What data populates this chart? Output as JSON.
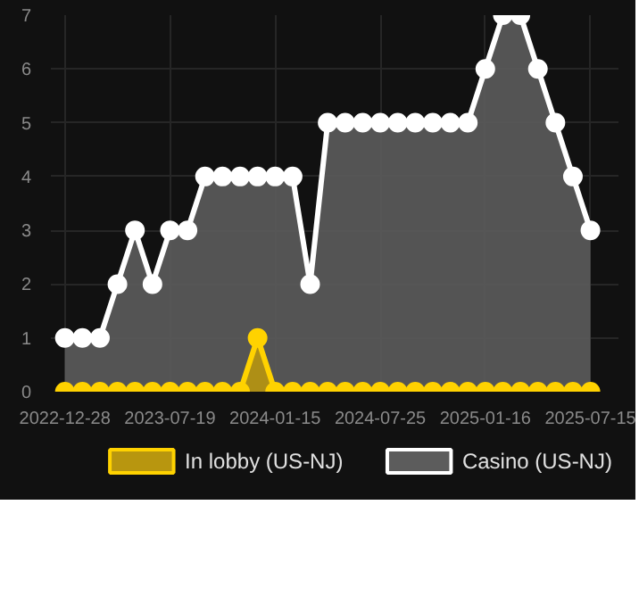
{
  "chart_data": {
    "type": "area",
    "categories": [
      "2022-12-28",
      null,
      null,
      null,
      null,
      null,
      "2023-07-19",
      null,
      null,
      null,
      null,
      null,
      "2024-01-15",
      null,
      null,
      null,
      null,
      null,
      "2024-07-25",
      null,
      null,
      null,
      null,
      null,
      "2025-01-16",
      null,
      null,
      null,
      null,
      null,
      "2025-07-15"
    ],
    "series": [
      {
        "name": "In lobby (US-NJ)",
        "color": "#ffd200",
        "values": [
          0,
          0,
          0,
          0,
          0,
          0,
          0,
          0,
          0,
          0,
          0,
          1,
          0,
          0,
          0,
          0,
          0,
          0,
          0,
          0,
          0,
          0,
          0,
          0,
          0,
          0,
          0,
          0,
          0,
          0,
          0
        ]
      },
      {
        "name": "Casino (US-NJ)",
        "color": "#ffffff",
        "values": [
          1,
          1,
          1,
          2,
          3,
          2,
          3,
          3,
          4,
          4,
          4,
          4,
          4,
          4,
          2,
          5,
          5,
          5,
          5,
          5,
          5,
          5,
          5,
          5,
          6,
          7,
          7,
          6,
          5,
          4,
          3
        ]
      }
    ],
    "ylim": [
      0,
      7
    ],
    "yticks": [
      0,
      1,
      2,
      3,
      4,
      5,
      6,
      7
    ],
    "grid": true,
    "legend": "bottom",
    "marker": "circle"
  }
}
